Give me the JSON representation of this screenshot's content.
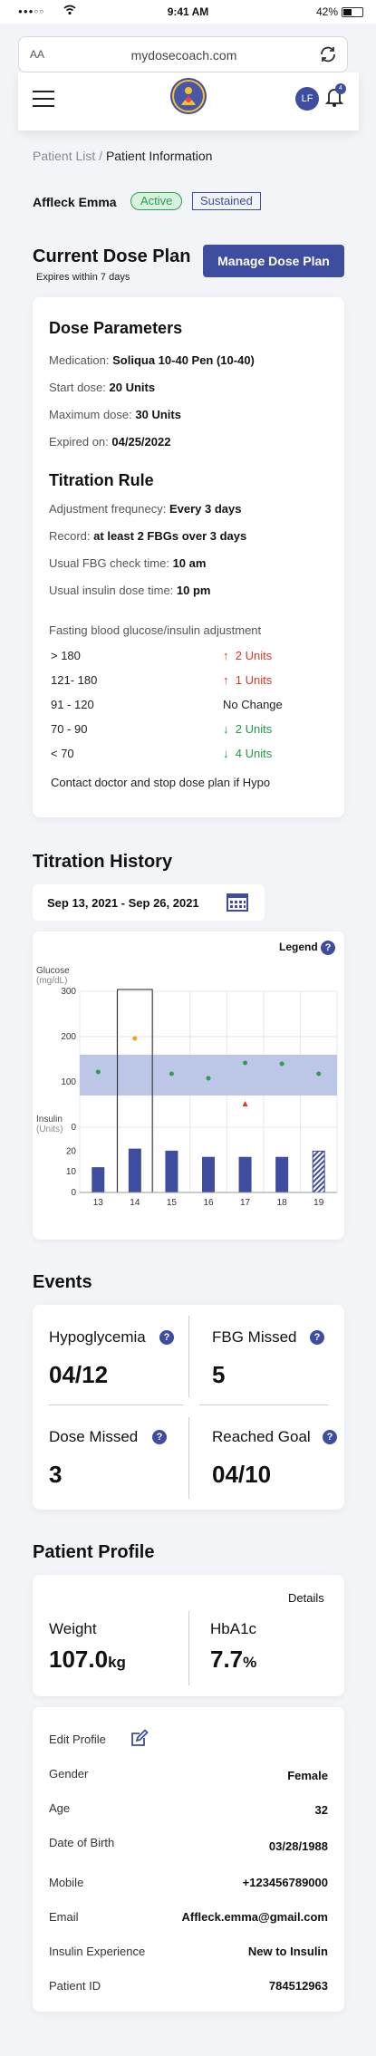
{
  "statusbar": {
    "signal": "●●●○○",
    "time": "9:41 AM",
    "battery": "42%"
  },
  "browser": {
    "text_size": "AA",
    "url": "mydosecoach.com"
  },
  "header": {
    "avatar_initials": "LF",
    "notification_count": "4"
  },
  "breadcrumb": {
    "parent": "Patient List",
    "separator": "/",
    "current": "Patient Information"
  },
  "patient": {
    "name": "Affleck Emma",
    "status": "Active",
    "plan_state": "Sustained"
  },
  "dose_plan": {
    "title": "Current Dose Plan",
    "expires": "Expires within 7 days",
    "manage_button": "Manage Dose Plan",
    "params": {
      "title": "Dose Parameters",
      "medication_label": "Medication:",
      "medication": "Soliqua 10-40 Pen (10-40)",
      "start_label": "Start dose:",
      "start": "20 Units",
      "max_label": "Maximum dose:",
      "max": "30 Units",
      "expired_label": "Expired on:",
      "expired": "04/25/2022"
    },
    "titration": {
      "title": "Titration Rule",
      "freq_label": "Adjustment frequnecy:",
      "freq": "Every 3 days",
      "record_label": "Record:",
      "record": "at least 2 FBGs over 3 days",
      "fbg_label": "Usual FBG check time:",
      "fbg": "10 am",
      "insulin_label": "Usual insulin dose time:",
      "insulin": "10 pm",
      "table_title": "Fasting blood glucose/insulin adjustment",
      "rows": [
        {
          "range": "> 180",
          "arrow": "↑",
          "adj": "2 Units",
          "dir": "up"
        },
        {
          "range": "121- 180",
          "arrow": "↑",
          "adj": "1 Units",
          "dir": "up"
        },
        {
          "range": "91 - 120",
          "arrow": "",
          "adj": "No Change",
          "dir": "none"
        },
        {
          "range": "70 - 90",
          "arrow": "↓",
          "adj": "2 Units",
          "dir": "down"
        },
        {
          "range": "< 70",
          "arrow": "↓",
          "adj": "4 Units",
          "dir": "down"
        }
      ],
      "note": "Contact doctor and stop dose plan if Hypo"
    }
  },
  "history": {
    "title": "Titration History",
    "date_range": "Sep 13, 2021 - Sep 26, 2021",
    "legend_label": "Legend",
    "help": "?"
  },
  "chart_data": {
    "type": "scatter",
    "glucose_label": "Glucose",
    "glucose_unit": "(mg/dL)",
    "insulin_label": "Insulin",
    "insulin_unit": "(Units)",
    "x": [
      "13",
      "14",
      "15",
      "16",
      "17",
      "18",
      "19"
    ],
    "glucose_ticks": [
      "300",
      "200",
      "100",
      "0"
    ],
    "insulin_ticks": [
      "20",
      "10",
      "0"
    ],
    "glucose_ylim": [
      0,
      300
    ],
    "target_band": [
      70,
      160
    ],
    "glucose": [
      {
        "x": "13",
        "value": 122,
        "status": "normal"
      },
      {
        "x": "14",
        "value": 196,
        "status": "high"
      },
      {
        "x": "15",
        "value": 118,
        "status": "normal"
      },
      {
        "x": "16",
        "value": 108,
        "status": "normal"
      },
      {
        "x": "17",
        "value": 142,
        "status": "normal"
      },
      {
        "x": "18",
        "value": 140,
        "status": "normal"
      },
      {
        "x": "19",
        "value": 118,
        "status": "normal"
      }
    ],
    "hypo_marker": {
      "x": "17",
      "value": 52
    },
    "insulin_ylim": [
      0,
      25
    ],
    "insulin": [
      {
        "x": "13",
        "value": 12,
        "planned": false
      },
      {
        "x": "14",
        "value": 21,
        "planned": false
      },
      {
        "x": "15",
        "value": 20,
        "planned": false
      },
      {
        "x": "16",
        "value": 17,
        "planned": false
      },
      {
        "x": "17",
        "value": 17,
        "planned": false
      },
      {
        "x": "18",
        "value": 17,
        "planned": false
      },
      {
        "x": "19",
        "value": 20,
        "planned": true
      }
    ],
    "selected": "14",
    "colors": {
      "band": "#bcc6e6",
      "bar": "#3e4da0",
      "dot": "#2e9d4e",
      "high": "#f0a020",
      "hypo": "#e0342b"
    }
  },
  "events": {
    "title": "Events",
    "hypo_label": "Hypoglycemia",
    "hypo_value": "04/12",
    "fbg_label": "FBG Missed",
    "fbg_value": "5",
    "dose_label": "Dose Missed",
    "dose_value": "3",
    "goal_label": "Reached Goal",
    "goal_value": "04/10",
    "help": "?"
  },
  "profile": {
    "title": "Patient Profile",
    "details_link": "Details",
    "weight_label": "Weight",
    "weight_value": "107.0",
    "weight_unit": "kg",
    "a1c_label": "HbA1c",
    "a1c_value": "7.7",
    "a1c_unit": "%",
    "edit_label": "Edit Profile",
    "fields": [
      {
        "label": "Gender",
        "value": "Female"
      },
      {
        "label": "Age",
        "value": "32"
      },
      {
        "label": "Date of Birth",
        "value": "03/28/1988"
      },
      {
        "label": "Mobile",
        "value": "+123456789000"
      },
      {
        "label": "Email",
        "value": "Affleck.emma@gmail.com"
      },
      {
        "label": "Insulin Experience",
        "value": "New to Insulin"
      },
      {
        "label": "Patient ID",
        "value": "784512963"
      }
    ]
  }
}
